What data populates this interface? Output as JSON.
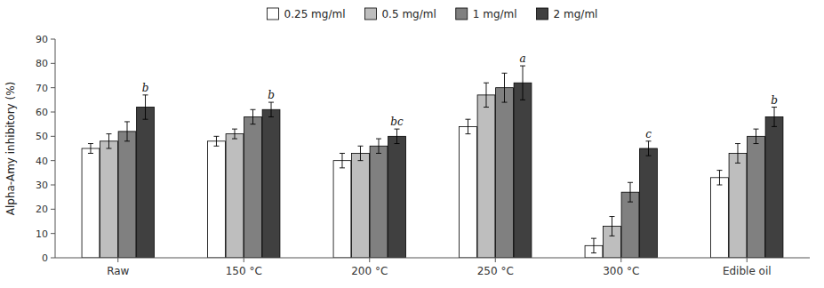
{
  "chart_data": {
    "type": "bar",
    "categories": [
      "Raw",
      "150 °C",
      "200 °C",
      "250 °C",
      "300 °C",
      "Edible oil"
    ],
    "series": [
      {
        "name": "0.25 mg/ml",
        "color": "#ffffff",
        "values": [
          45.0,
          48.0,
          40.0,
          54.0,
          5.0,
          33.0
        ],
        "errors": [
          2.0,
          2.0,
          3.0,
          3.0,
          3.0,
          3.0
        ]
      },
      {
        "name": "0.5 mg/ml",
        "color": "#bebebe",
        "values": [
          48.0,
          51.0,
          43.0,
          67.0,
          13.0,
          43.0
        ],
        "errors": [
          3.0,
          2.0,
          3.0,
          5.0,
          4.0,
          4.0
        ]
      },
      {
        "name": "1 mg/ml",
        "color": "#808080",
        "values": [
          52.0,
          58.0,
          46.0,
          70.0,
          27.0,
          50.0
        ],
        "errors": [
          4.0,
          3.0,
          3.0,
          6.0,
          4.0,
          3.0
        ]
      },
      {
        "name": "2 mg/ml",
        "color": "#404040",
        "values": [
          62.0,
          61.0,
          50.0,
          72.0,
          45.0,
          58.0
        ],
        "errors": [
          5.0,
          3.0,
          3.0,
          7.0,
          3.0,
          4.0
        ]
      }
    ],
    "annotations": [
      "b",
      "b",
      "bc",
      "a",
      "c",
      "b"
    ],
    "ylabel": "Alpha-Amy inhibitory (%)",
    "ylim": [
      0,
      90
    ],
    "yticks": [
      0,
      10,
      20,
      30,
      40,
      50,
      60,
      70,
      80,
      90
    ],
    "grid": false,
    "legend": "top"
  }
}
